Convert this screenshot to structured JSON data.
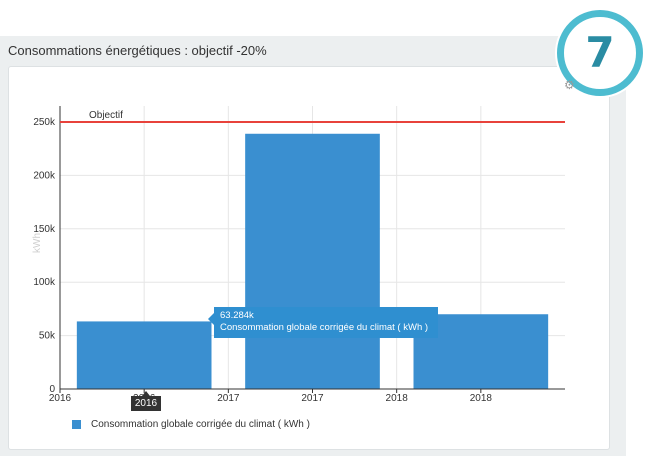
{
  "panel": {
    "title": "Consommations énergétiques : objectif -20%"
  },
  "badge": {
    "number": "7",
    "ring_color": "#4dbcd0",
    "text_color": "#2a8ca3"
  },
  "tooltip": {
    "value": "63.284k",
    "series": "Consommation globale corrigée du climat ( kWh )"
  },
  "xtip": {
    "label": "2016"
  },
  "legend": {
    "label": "Consommation globale corrigée du climat ( kWh )"
  },
  "colors": {
    "bar": "#3a8fd0",
    "objective_line": "#e8423b",
    "grid": "#e6e6e6"
  },
  "chart_data": {
    "type": "bar",
    "ylabel": "kWh",
    "ylim": [
      0,
      265000
    ],
    "yticks": [
      {
        "value": 0,
        "label": "0"
      },
      {
        "value": 50000,
        "label": "50k"
      },
      {
        "value": 100000,
        "label": "100k"
      },
      {
        "value": 150000,
        "label": "150k"
      },
      {
        "value": 200000,
        "label": "200k"
      },
      {
        "value": 250000,
        "label": "250k"
      }
    ],
    "xlim": [
      2016,
      2019
    ],
    "xticks": [
      {
        "value": 2016,
        "label": "2016"
      },
      {
        "value": 2016.5,
        "label": "2016"
      },
      {
        "value": 2017,
        "label": "2017"
      },
      {
        "value": 2017.5,
        "label": "2017"
      },
      {
        "value": 2018,
        "label": "2018"
      },
      {
        "value": 2018.5,
        "label": "2018"
      }
    ],
    "bars": [
      {
        "x": 2016.5,
        "value": 63284
      },
      {
        "x": 2017.5,
        "value": 239000
      },
      {
        "x": 2018.5,
        "value": 70000
      }
    ],
    "objective": {
      "label": "Objectif",
      "value": 250000
    },
    "series": [
      {
        "name": "Consommation globale corrigée du climat ( kWh )"
      }
    ],
    "legend_position": "bottom-left",
    "grid": true
  }
}
